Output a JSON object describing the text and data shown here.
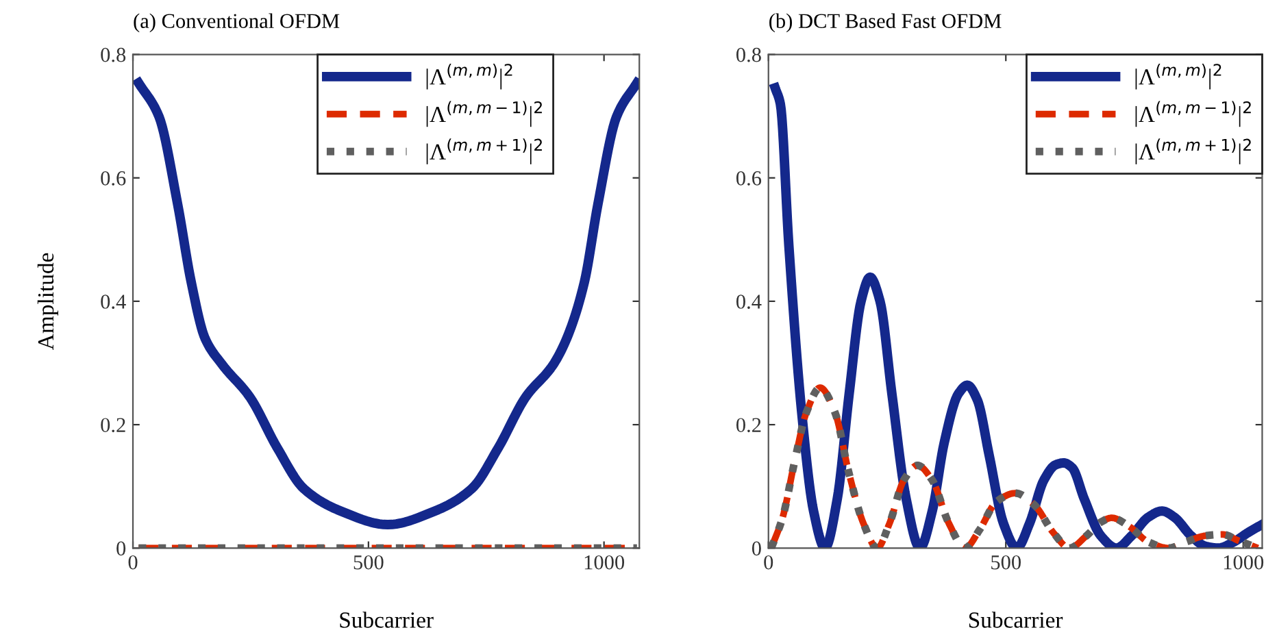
{
  "chart_data": [
    {
      "type": "line",
      "title": "(a) Conventional OFDM",
      "xlabel": "Subcarrier",
      "ylabel": "Amplitude",
      "xlim": [
        0,
        1075
      ],
      "xticks": [
        0,
        500,
        1000
      ],
      "ylim": [
        0,
        0.8
      ],
      "yticks": [
        0,
        0.2,
        0.4,
        0.6,
        0.8
      ],
      "grid": false,
      "legend": "top right",
      "series": [
        {
          "name": "|Λ$^{(m,m)}$|$^{2}$",
          "color": "#14288c",
          "line_style": "solid",
          "x": [
            12,
            55,
            95,
            124,
            153,
            190,
            248,
            306,
            363,
            441,
            541,
            641,
            719,
            776,
            834,
            892,
            921,
            958,
            987,
            1027,
            1070
          ],
          "values": [
            0.754,
            0.7,
            0.557,
            0.43,
            0.34,
            0.297,
            0.245,
            0.163,
            0.096,
            0.06,
            0.038,
            0.06,
            0.096,
            0.163,
            0.245,
            0.297,
            0.34,
            0.43,
            0.557,
            0.7,
            0.754
          ]
        },
        {
          "name": "|Λ$^{(m,m−1)}$|$^{2}$",
          "color": "#dd2a00",
          "line_style": "dashed",
          "x": [
            12,
            1070
          ],
          "values": [
            0,
            0
          ]
        },
        {
          "name": "|Λ$^{(m,m+1)}$|$^{2}$",
          "color": "#5f5f5f",
          "line_style": "dotted",
          "x": [
            12,
            1070
          ],
          "values": [
            0,
            0
          ]
        }
      ]
    },
    {
      "type": "line",
      "title": "(b) DCT Based Fast OFDM",
      "xlabel": "Subcarrier",
      "xlim": [
        0,
        1040
      ],
      "xticks": [
        0,
        500,
        1000
      ],
      "ylim": [
        0,
        0.8
      ],
      "yticks": [
        0,
        0.2,
        0.4,
        0.6,
        0.8
      ],
      "grid": false,
      "legend": "top right",
      "series": [
        {
          "name": "|Λ$^{(m,m)}$|$^{2}$",
          "color": "#14288c",
          "line_style": "solid",
          "x": [
            14,
            25,
            43,
            70,
            95,
            119,
            145,
            170,
            195,
            214,
            235,
            260,
            290,
            319,
            345,
            370,
            400,
            419,
            440,
            465,
            495,
            523,
            550,
            580,
            605,
            622,
            640,
            665,
            700,
            733,
            765,
            800,
            829,
            855,
            890,
            920,
            948,
            980,
            1010,
            1037
          ],
          "values": [
            0.746,
            0.72,
            0.49,
            0.22,
            0.06,
            0.0,
            0.08,
            0.25,
            0.4,
            0.439,
            0.4,
            0.25,
            0.08,
            0.0,
            0.06,
            0.17,
            0.25,
            0.264,
            0.24,
            0.15,
            0.04,
            0.0,
            0.04,
            0.11,
            0.135,
            0.138,
            0.13,
            0.08,
            0.02,
            0.0,
            0.02,
            0.05,
            0.06,
            0.05,
            0.02,
            0.003,
            0.0,
            0.01,
            0.025,
            0.037
          ]
        },
        {
          "name": "|Λ$^{(m,m−1)}$|$^{2}$",
          "color": "#dd2a00",
          "line_style": "dashed",
          "x": [
            6,
            30,
            55,
            80,
            109,
            140,
            170,
            200,
            229,
            255,
            285,
            314,
            345,
            380,
            414,
            445,
            480,
            520,
            560,
            600,
            634,
            670,
            700,
            723,
            760,
            800,
            843,
            880,
            920,
            957,
            990,
            1031
          ],
          "values": [
            0,
            0.05,
            0.14,
            0.22,
            0.26,
            0.22,
            0.12,
            0.04,
            0,
            0.04,
            0.11,
            0.134,
            0.11,
            0.04,
            0,
            0.03,
            0.075,
            0.089,
            0.07,
            0.025,
            0,
            0.02,
            0.042,
            0.049,
            0.035,
            0.01,
            0,
            0.01,
            0.02,
            0.022,
            0.012,
            0
          ]
        },
        {
          "name": "|Λ$^{(m,m+1)}$|$^{2}$",
          "color": "#5f5f5f",
          "line_style": "dotted",
          "x": [
            6,
            30,
            55,
            80,
            109,
            140,
            170,
            200,
            229,
            255,
            285,
            314,
            345,
            380,
            414,
            445,
            480,
            520,
            560,
            600,
            634,
            670,
            700,
            723,
            760,
            800,
            843,
            880,
            920,
            957,
            990,
            1031
          ],
          "values": [
            0,
            0.05,
            0.14,
            0.22,
            0.26,
            0.22,
            0.12,
            0.04,
            0,
            0.04,
            0.11,
            0.134,
            0.11,
            0.04,
            0,
            0.03,
            0.075,
            0.089,
            0.07,
            0.025,
            0,
            0.02,
            0.042,
            0.049,
            0.035,
            0.01,
            0,
            0.01,
            0.02,
            0.022,
            0.012,
            0
          ]
        }
      ]
    }
  ]
}
